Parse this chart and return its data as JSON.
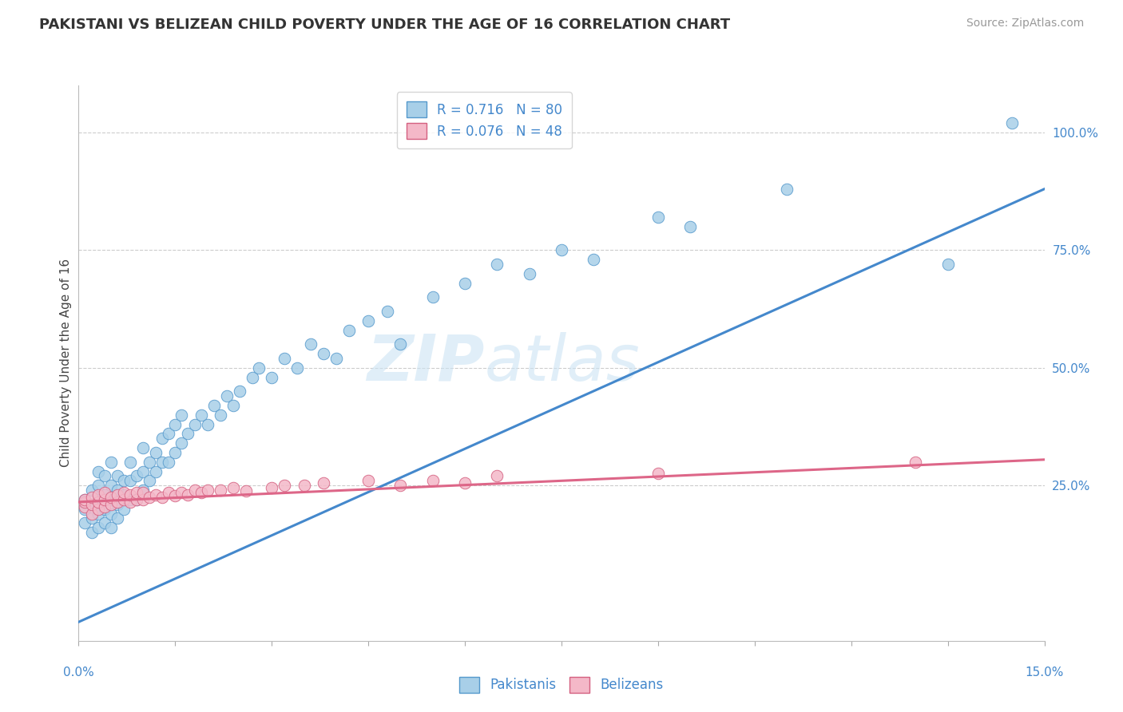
{
  "title": "PAKISTANI VS BELIZEAN CHILD POVERTY UNDER THE AGE OF 16 CORRELATION CHART",
  "source": "Source: ZipAtlas.com",
  "ylabel": "Child Poverty Under the Age of 16",
  "right_yticks": [
    0.0,
    0.25,
    0.5,
    0.75,
    1.0
  ],
  "right_yticklabels": [
    "",
    "25.0%",
    "50.0%",
    "75.0%",
    "100.0%"
  ],
  "xmin": 0.0,
  "xmax": 0.15,
  "ymin": -0.08,
  "ymax": 1.1,
  "blue_R": "0.716",
  "blue_N": "80",
  "pink_R": "0.076",
  "pink_N": "48",
  "legend_label1": "Pakistanis",
  "legend_label2": "Belizeans",
  "blue_color": "#a8cfe8",
  "pink_color": "#f4b8c8",
  "blue_edge_color": "#5599cc",
  "pink_edge_color": "#d46080",
  "blue_line_color": "#4488cc",
  "pink_line_color": "#dd6688",
  "watermark_zip": "ZIP",
  "watermark_atlas": "atlas",
  "blue_line_x": [
    0.0,
    0.15
  ],
  "blue_line_y": [
    -0.04,
    0.88
  ],
  "pink_line_x": [
    0.0,
    0.15
  ],
  "pink_line_y": [
    0.215,
    0.305
  ],
  "blue_scatter_x": [
    0.001,
    0.001,
    0.001,
    0.002,
    0.002,
    0.002,
    0.002,
    0.003,
    0.003,
    0.003,
    0.003,
    0.003,
    0.004,
    0.004,
    0.004,
    0.004,
    0.005,
    0.005,
    0.005,
    0.005,
    0.005,
    0.006,
    0.006,
    0.006,
    0.006,
    0.007,
    0.007,
    0.007,
    0.008,
    0.008,
    0.008,
    0.009,
    0.009,
    0.01,
    0.01,
    0.01,
    0.011,
    0.011,
    0.012,
    0.012,
    0.013,
    0.013,
    0.014,
    0.014,
    0.015,
    0.015,
    0.016,
    0.016,
    0.017,
    0.018,
    0.019,
    0.02,
    0.021,
    0.022,
    0.023,
    0.024,
    0.025,
    0.027,
    0.028,
    0.03,
    0.032,
    0.034,
    0.036,
    0.038,
    0.04,
    0.042,
    0.045,
    0.048,
    0.05,
    0.055,
    0.06,
    0.065,
    0.07,
    0.075,
    0.08,
    0.09,
    0.095,
    0.11,
    0.135,
    0.145
  ],
  "blue_scatter_y": [
    0.17,
    0.2,
    0.22,
    0.15,
    0.18,
    0.21,
    0.24,
    0.16,
    0.19,
    0.22,
    0.25,
    0.28,
    0.17,
    0.2,
    0.23,
    0.27,
    0.16,
    0.19,
    0.22,
    0.25,
    0.3,
    0.18,
    0.21,
    0.24,
    0.27,
    0.2,
    0.23,
    0.26,
    0.22,
    0.26,
    0.3,
    0.22,
    0.27,
    0.24,
    0.28,
    0.33,
    0.26,
    0.3,
    0.28,
    0.32,
    0.3,
    0.35,
    0.3,
    0.36,
    0.32,
    0.38,
    0.34,
    0.4,
    0.36,
    0.38,
    0.4,
    0.38,
    0.42,
    0.4,
    0.44,
    0.42,
    0.45,
    0.48,
    0.5,
    0.48,
    0.52,
    0.5,
    0.55,
    0.53,
    0.52,
    0.58,
    0.6,
    0.62,
    0.55,
    0.65,
    0.68,
    0.72,
    0.7,
    0.75,
    0.73,
    0.82,
    0.8,
    0.88,
    0.72,
    1.02
  ],
  "pink_scatter_x": [
    0.001,
    0.001,
    0.001,
    0.002,
    0.002,
    0.002,
    0.003,
    0.003,
    0.003,
    0.004,
    0.004,
    0.004,
    0.005,
    0.005,
    0.006,
    0.006,
    0.007,
    0.007,
    0.008,
    0.008,
    0.009,
    0.009,
    0.01,
    0.01,
    0.011,
    0.012,
    0.013,
    0.014,
    0.015,
    0.016,
    0.017,
    0.018,
    0.019,
    0.02,
    0.022,
    0.024,
    0.026,
    0.03,
    0.032,
    0.035,
    0.038,
    0.045,
    0.05,
    0.055,
    0.06,
    0.065,
    0.09,
    0.13
  ],
  "pink_scatter_y": [
    0.205,
    0.215,
    0.22,
    0.19,
    0.21,
    0.225,
    0.2,
    0.215,
    0.23,
    0.205,
    0.22,
    0.235,
    0.21,
    0.225,
    0.215,
    0.23,
    0.22,
    0.235,
    0.215,
    0.23,
    0.22,
    0.235,
    0.22,
    0.235,
    0.225,
    0.23,
    0.225,
    0.235,
    0.228,
    0.235,
    0.23,
    0.24,
    0.235,
    0.24,
    0.24,
    0.245,
    0.238,
    0.245,
    0.25,
    0.25,
    0.255,
    0.26,
    0.25,
    0.26,
    0.255,
    0.27,
    0.275,
    0.3
  ]
}
